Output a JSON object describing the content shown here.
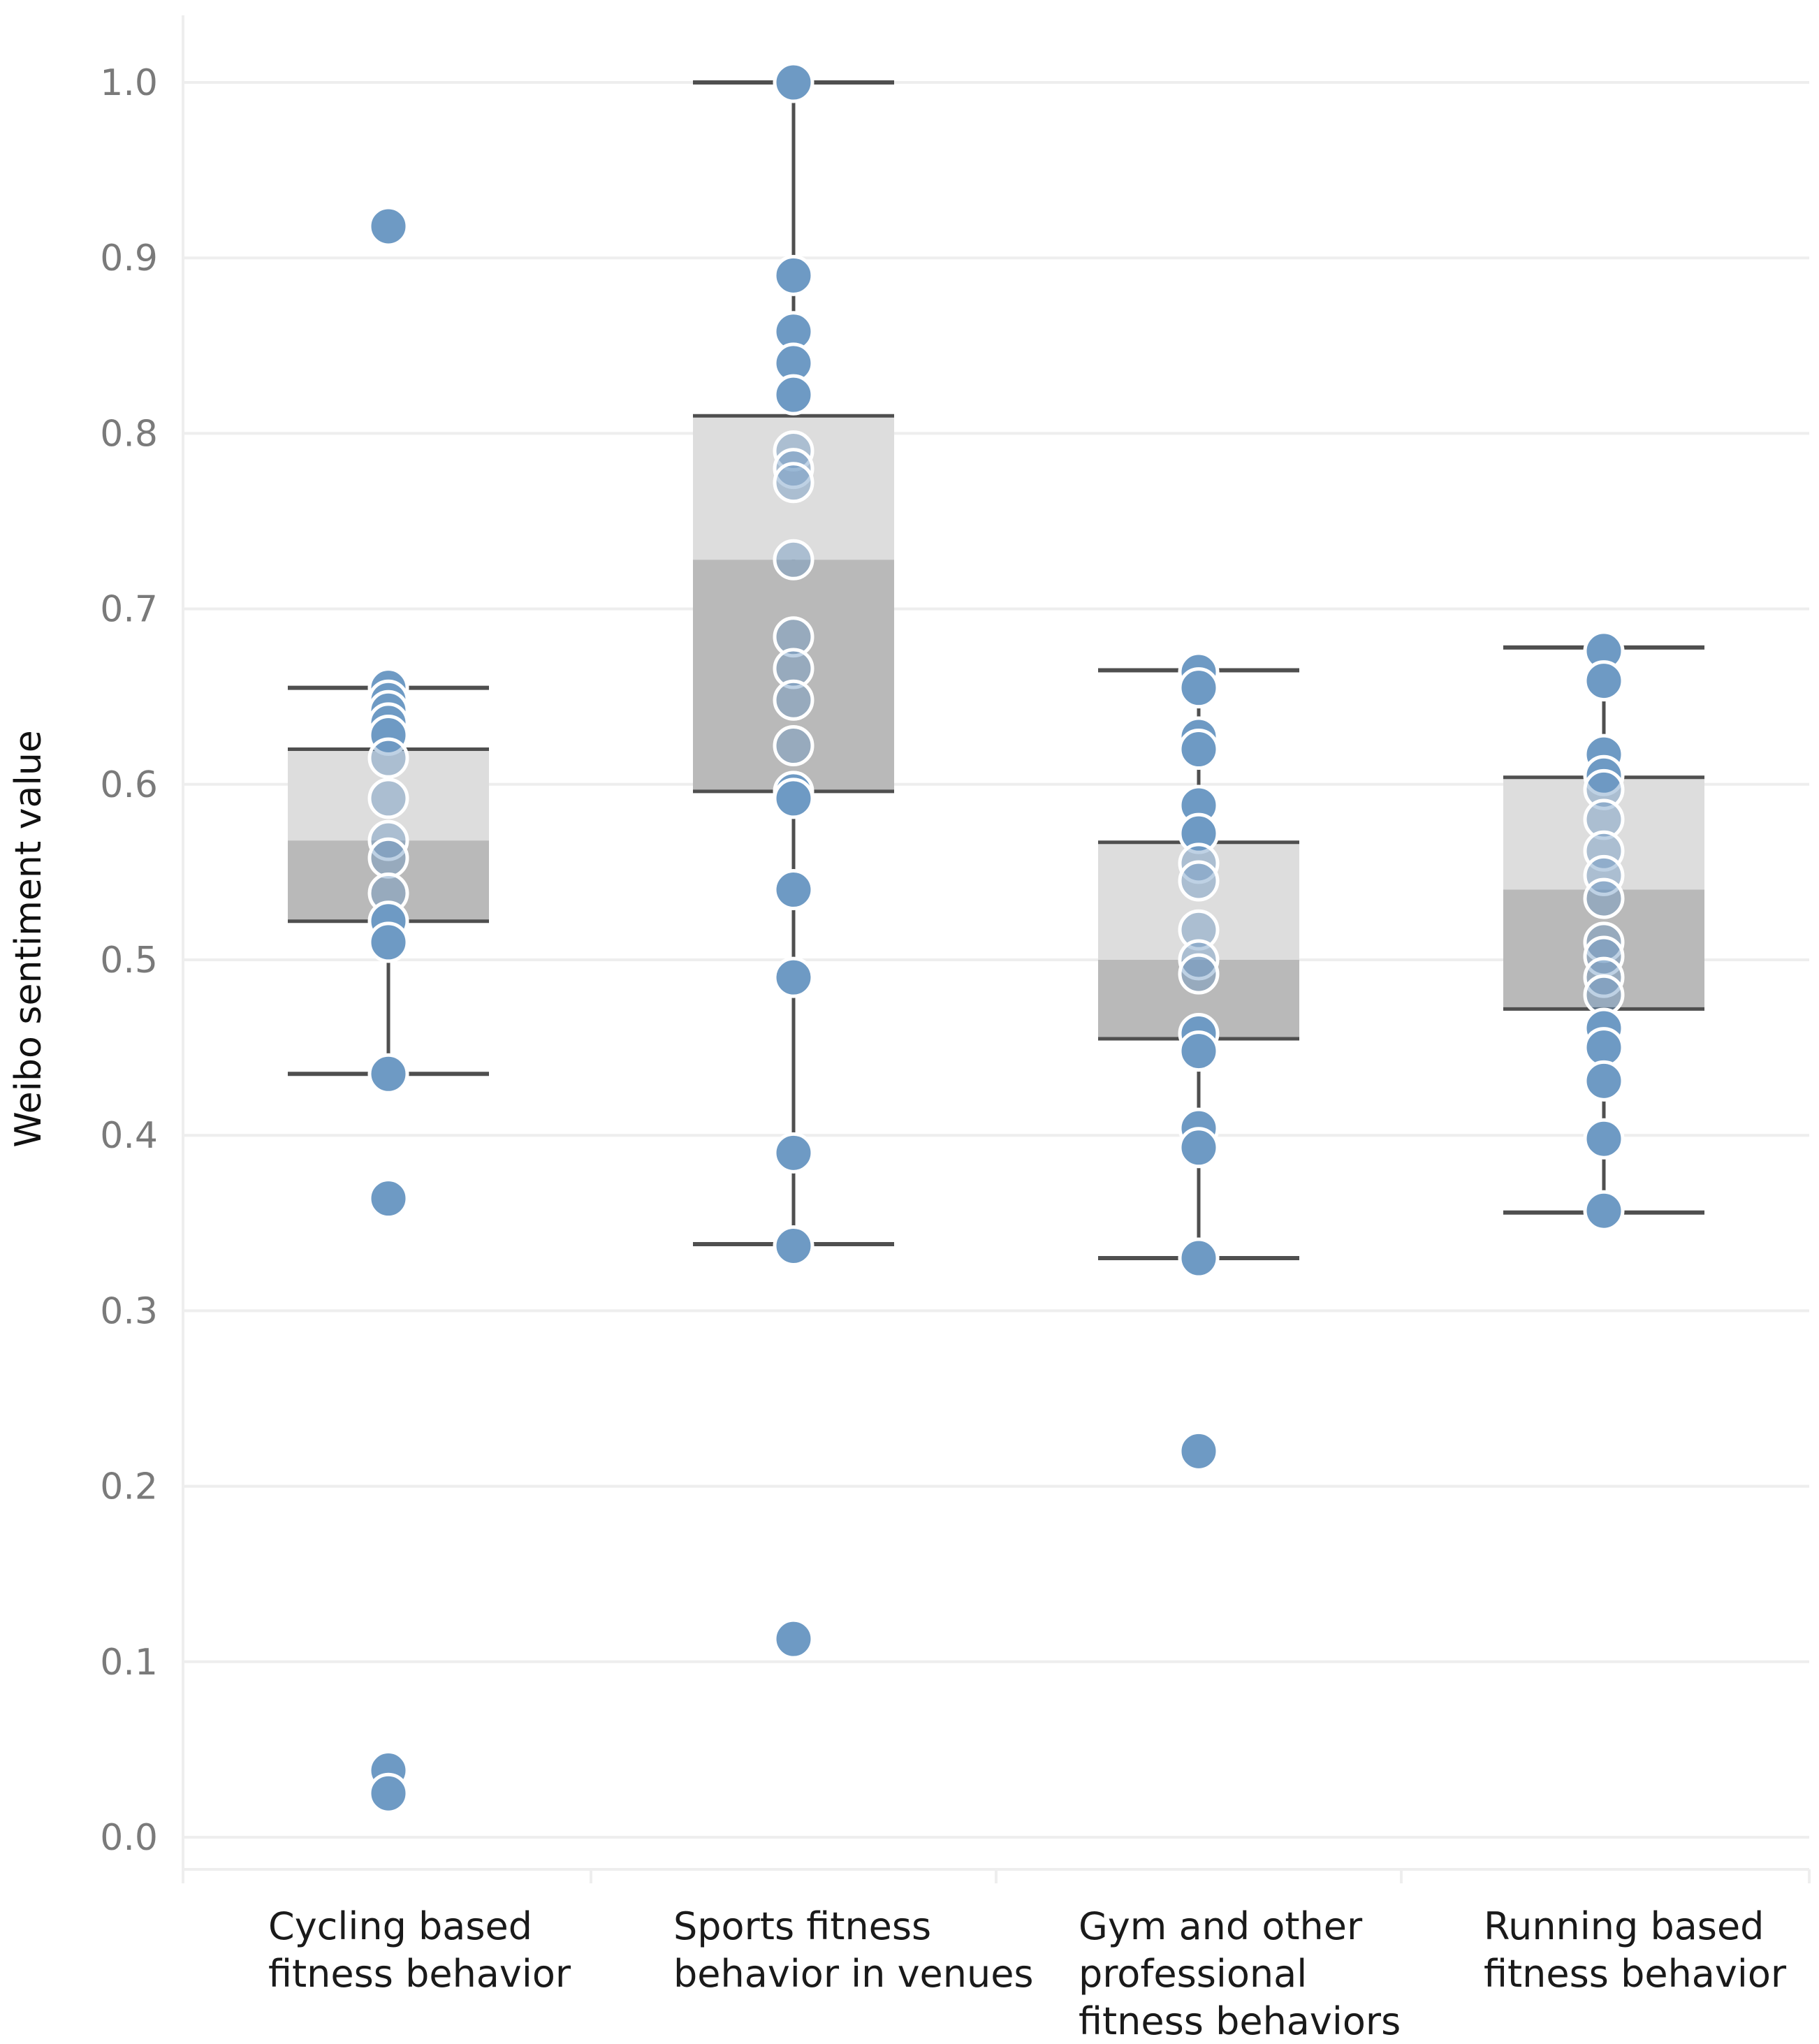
{
  "chart_data": {
    "type": "box",
    "title": "",
    "xlabel": "",
    "ylabel": "Weibo sentiment value",
    "ylim": [
      -0.015,
      1.04
    ],
    "yticks": [
      "0.0",
      "0.1",
      "0.2",
      "0.3",
      "0.4",
      "0.5",
      "0.6",
      "0.7",
      "0.8",
      "0.9",
      "1.0"
    ],
    "grid": true,
    "colors": {
      "point": "#6e9ac4",
      "box_upper": "#dddddd",
      "box_lower": "#b9b9b9",
      "line": "#4f4f4f",
      "grid": "#eeeeee"
    },
    "categories": [
      {
        "label_lines": [
          "Cycling based",
          "fitness behavior"
        ],
        "whisker_low": 0.435,
        "q1": 0.522,
        "median": 0.568,
        "q3": 0.62,
        "whisker_high": 0.655,
        "points": [
          0.918,
          0.655,
          0.648,
          0.642,
          0.635,
          0.628,
          0.615,
          0.592,
          0.568,
          0.558,
          0.538,
          0.522,
          0.51,
          0.435,
          0.364,
          0.038,
          0.025
        ]
      },
      {
        "label_lines": [
          "Sports fitness",
          "behavior in venues"
        ],
        "whisker_low": 0.338,
        "q1": 0.596,
        "median": 0.728,
        "q3": 0.81,
        "whisker_high": 1.0,
        "points": [
          1.0,
          0.89,
          0.858,
          0.84,
          0.822,
          0.79,
          0.78,
          0.772,
          0.728,
          0.684,
          0.666,
          0.648,
          0.622,
          0.596,
          0.592,
          0.54,
          0.49,
          0.39,
          0.337,
          0.113
        ]
      },
      {
        "label_lines": [
          "Gym and other",
          "professional",
          "fitness behaviors"
        ],
        "whisker_low": 0.33,
        "q1": 0.455,
        "median": 0.5,
        "q3": 0.567,
        "whisker_high": 0.665,
        "points": [
          0.664,
          0.655,
          0.627,
          0.62,
          0.588,
          0.572,
          0.555,
          0.545,
          0.517,
          0.5,
          0.492,
          0.458,
          0.448,
          0.404,
          0.393,
          0.33,
          0.22
        ]
      },
      {
        "label_lines": [
          "Running based",
          "fitness behavior"
        ],
        "whisker_low": 0.356,
        "q1": 0.472,
        "median": 0.54,
        "q3": 0.604,
        "whisker_high": 0.678,
        "points": [
          0.676,
          0.659,
          0.617,
          0.605,
          0.597,
          0.58,
          0.562,
          0.548,
          0.535,
          0.51,
          0.502,
          0.49,
          0.48,
          0.461,
          0.45,
          0.431,
          0.398,
          0.357
        ]
      }
    ]
  }
}
